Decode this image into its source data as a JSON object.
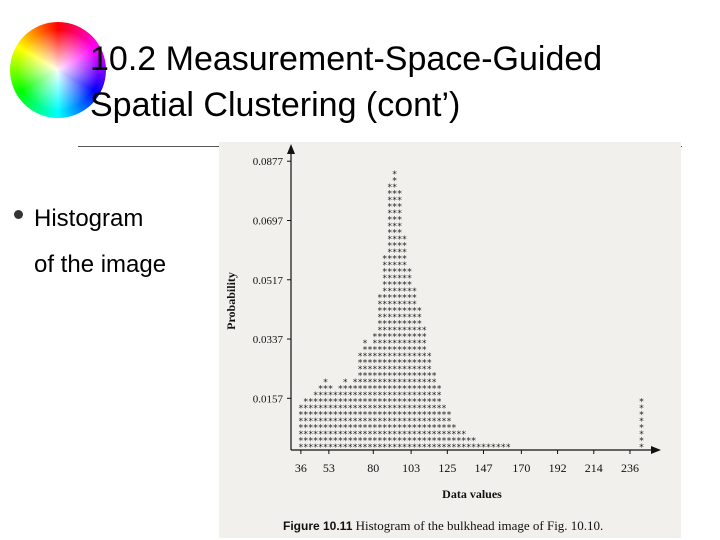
{
  "slide": {
    "title_line1": "10.2 Measurement-Space-Guided",
    "title_line2": "Spatial Clustering (cont’)",
    "bullet_line1": "Histogram",
    "bullet_line2": "of the image",
    "colors": {
      "background": "#ffffff",
      "text": "#000000",
      "figure_bg": "#f2f0ec"
    },
    "logo_icon": "color-wheel-icon"
  },
  "figure": {
    "caption_label": "Figure 10.11",
    "caption_text": "Histogram of the bulkhead image of Fig. 10.10."
  },
  "chart_data": {
    "type": "bar",
    "title": "",
    "xlabel": "Data values",
    "ylabel": "Probability",
    "xlim": [
      30,
      250
    ],
    "ylim": [
      0,
      0.0905
    ],
    "x_ticks": [
      36,
      53,
      80,
      103,
      125,
      147,
      170,
      192,
      214,
      236
    ],
    "x_tick_labels": [
      "36",
      "53",
      "80",
      "103",
      "125",
      "147",
      "170",
      "192",
      "214",
      "236"
    ],
    "y_ticks": [
      0.0157,
      0.0337,
      0.0517,
      0.0697,
      0.0877
    ],
    "y_tick_labels": [
      "0.0157",
      "0.0337",
      "0.0517",
      "0.0697",
      "0.0877"
    ],
    "x": [
      36,
      39,
      42,
      45,
      48,
      51,
      54,
      57,
      60,
      63,
      66,
      69,
      72,
      75,
      78,
      81,
      84,
      87,
      90,
      93,
      96,
      99,
      102,
      105,
      108,
      111,
      114,
      117,
      120,
      123,
      126,
      129,
      132,
      135,
      138,
      141,
      144,
      147,
      150,
      153,
      156,
      159,
      162,
      165,
      168,
      171,
      174,
      177,
      180,
      183,
      186,
      189,
      192,
      195,
      198,
      201,
      204,
      207,
      210,
      213,
      216,
      219,
      222,
      225,
      228,
      231,
      234,
      237,
      240,
      243
    ],
    "values": [
      0.013,
      0.015,
      0.016,
      0.017,
      0.019,
      0.021,
      0.02,
      0.018,
      0.02,
      0.022,
      0.019,
      0.021,
      0.03,
      0.033,
      0.031,
      0.036,
      0.047,
      0.06,
      0.08,
      0.084,
      0.078,
      0.066,
      0.055,
      0.05,
      0.044,
      0.037,
      0.03,
      0.024,
      0.019,
      0.014,
      0.011,
      0.008,
      0.006,
      0.005,
      0.004,
      0.003,
      0.0025,
      0.002,
      0.0018,
      0.0015,
      0.0012,
      0.001,
      0.001,
      0.0009,
      0.0008,
      0.0008,
      0.0007,
      0.0007,
      0.0006,
      0.0006,
      0.0006,
      0.0005,
      0.0005,
      0.0005,
      0.0005,
      0.0004,
      0.0004,
      0.0004,
      0.0004,
      0.0004,
      0.0003,
      0.0003,
      0.0003,
      0.0003,
      0.0003,
      0.0003,
      0.0003,
      0.0003,
      0.0003,
      0.016
    ],
    "grid": false,
    "marker": "*"
  }
}
